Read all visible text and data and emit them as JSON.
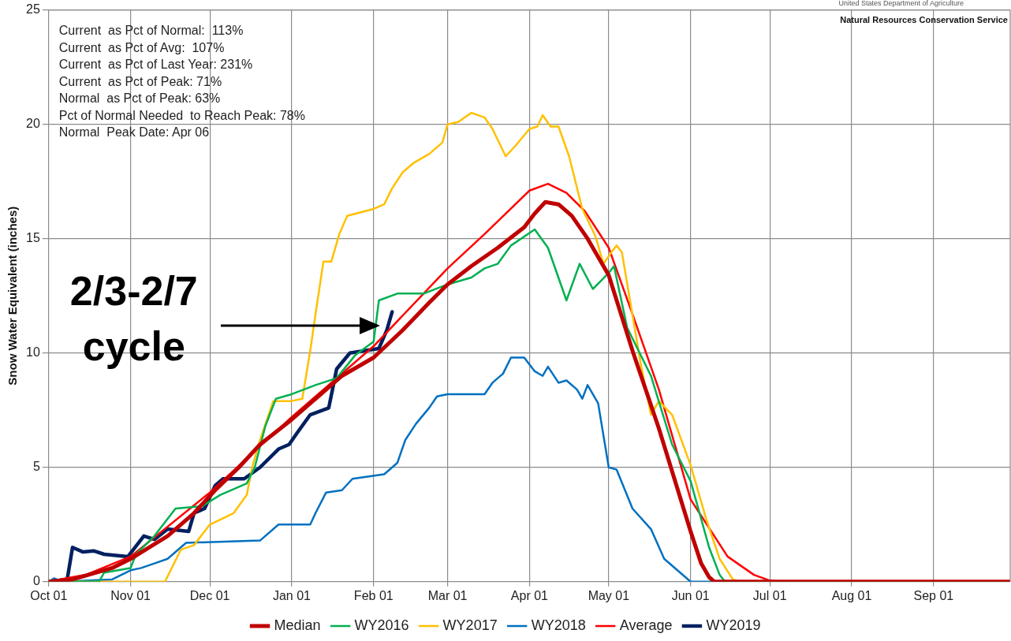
{
  "chart_data": {
    "type": "line",
    "ylabel": "Snow Water Equivalent (inches)",
    "xlim": [
      "2018-10-01",
      "2019-09-30"
    ],
    "xticks": [
      {
        "value": "2018-10-01",
        "label": "Oct 01"
      },
      {
        "value": "2018-11-01",
        "label": "Nov 01"
      },
      {
        "value": "2018-12-01",
        "label": "Dec 01"
      },
      {
        "value": "2019-01-01",
        "label": "Jan 01"
      },
      {
        "value": "2019-02-01",
        "label": "Feb 01"
      },
      {
        "value": "2019-03-01",
        "label": "Mar 01"
      },
      {
        "value": "2019-04-01",
        "label": "Apr 01"
      },
      {
        "value": "2019-05-01",
        "label": "May 01"
      },
      {
        "value": "2019-06-01",
        "label": "Jun 01"
      },
      {
        "value": "2019-07-01",
        "label": "Jul 01"
      },
      {
        "value": "2019-08-01",
        "label": "Aug 01"
      },
      {
        "value": "2019-09-01",
        "label": "Sep 01"
      }
    ],
    "ylim": [
      0,
      25
    ],
    "yticks": [
      0,
      5,
      10,
      15,
      20,
      25
    ],
    "grid": true,
    "legend": "bottom",
    "marker": "none",
    "annotations": [
      "Current  as Pct of Normal:  113%",
      "Current  as Pct of Avg:  107%",
      "Current  as Pct of Last Year: 231%",
      "Current  as Pct of Peak: 71%",
      "Normal  as Pct of Peak: 63%",
      "Pct of Normal Needed  to Reach Peak: 78%",
      "Normal  Peak Date: Apr 06",
      "United States Department of Agriculture",
      "Natural Resources Conservation Service",
      "2/3-2/7 cycle"
    ],
    "series": [
      {
        "name": "Median",
        "color": "#c00000",
        "x": [
          "2018-10-01",
          "2018-10-10",
          "2018-10-25",
          "2018-11-01",
          "2018-11-15",
          "2018-11-25",
          "2018-12-03",
          "2018-12-12",
          "2018-12-20",
          "2018-12-31",
          "2019-01-10",
          "2019-01-20",
          "2019-02-01",
          "2019-02-12",
          "2019-02-22",
          "2019-03-01",
          "2019-03-10",
          "2019-03-20",
          "2019-03-30",
          "2019-04-03",
          "2019-04-07",
          "2019-04-12",
          "2019-04-17",
          "2019-04-23",
          "2019-05-01",
          "2019-05-10",
          "2019-05-20",
          "2019-06-01",
          "2019-06-05",
          "2019-06-08",
          "2019-06-10",
          "2019-09-30"
        ],
        "values": [
          0,
          0.1,
          0.6,
          1.0,
          2.0,
          3.0,
          4.0,
          5.0,
          6.0,
          7.0,
          8.0,
          9.0,
          9.8,
          11.0,
          12.2,
          13.0,
          13.8,
          14.6,
          15.5,
          16.1,
          16.6,
          16.5,
          16.0,
          15.0,
          13.4,
          10.1,
          6.7,
          2.2,
          0.8,
          0.2,
          0,
          0
        ]
      },
      {
        "name": "WY2016",
        "color": "#00b050",
        "x": [
          "2018-10-01",
          "2018-10-20",
          "2018-10-22",
          "2018-11-01",
          "2018-11-03",
          "2018-11-10",
          "2018-11-18",
          "2018-11-28",
          "2018-12-05",
          "2018-12-15",
          "2018-12-18",
          "2018-12-22",
          "2018-12-26",
          "2019-01-01",
          "2019-01-10",
          "2019-01-18",
          "2019-01-25",
          "2019-02-01",
          "2019-02-03",
          "2019-02-10",
          "2019-02-20",
          "2019-03-01",
          "2019-03-10",
          "2019-03-15",
          "2019-03-20",
          "2019-03-25",
          "2019-04-03",
          "2019-04-08",
          "2019-04-15",
          "2019-04-20",
          "2019-04-25",
          "2019-05-01",
          "2019-05-03",
          "2019-05-08",
          "2019-05-17",
          "2019-05-25",
          "2019-06-01",
          "2019-06-08",
          "2019-06-12",
          "2019-06-14",
          "2019-09-30"
        ],
        "values": [
          0,
          0,
          0.4,
          0.6,
          1.2,
          2.0,
          3.2,
          3.3,
          3.8,
          4.3,
          5.0,
          6.8,
          8.0,
          8.2,
          8.6,
          8.9,
          9.9,
          10.5,
          12.3,
          12.6,
          12.6,
          13.0,
          13.3,
          13.7,
          13.9,
          14.7,
          15.4,
          14.6,
          12.3,
          13.9,
          12.8,
          13.5,
          13.8,
          11.1,
          9.0,
          6.0,
          4.4,
          1.5,
          0.3,
          0,
          0
        ]
      },
      {
        "name": "WY2017",
        "color": "#ffc000",
        "x": [
          "2018-10-01",
          "2018-11-14",
          "2018-11-20",
          "2018-11-25",
          "2018-12-01",
          "2018-12-10",
          "2018-12-15",
          "2018-12-17",
          "2018-12-20",
          "2018-12-25",
          "2019-01-01",
          "2019-01-05",
          "2019-01-08",
          "2019-01-10",
          "2019-01-13",
          "2019-01-16",
          "2019-01-19",
          "2019-01-22",
          "2019-02-01",
          "2019-02-05",
          "2019-02-08",
          "2019-02-12",
          "2019-02-16",
          "2019-02-22",
          "2019-02-27",
          "2019-03-01",
          "2019-03-05",
          "2019-03-10",
          "2019-03-15",
          "2019-03-18",
          "2019-03-23",
          "2019-03-27",
          "2019-04-01",
          "2019-04-04",
          "2019-04-06",
          "2019-04-09",
          "2019-04-12",
          "2019-04-16",
          "2019-04-21",
          "2019-04-26",
          "2019-04-29",
          "2019-05-02",
          "2019-05-04",
          "2019-05-06",
          "2019-05-13",
          "2019-05-17",
          "2019-05-20",
          "2019-05-25",
          "2019-06-01",
          "2019-06-07",
          "2019-06-12",
          "2019-06-17",
          "2019-06-20",
          "2019-09-30"
        ],
        "values": [
          0,
          0,
          1.4,
          1.6,
          2.5,
          3.0,
          3.8,
          5.0,
          6.2,
          7.9,
          7.9,
          8.0,
          10.1,
          11.7,
          14.0,
          14.0,
          15.2,
          16.0,
          16.3,
          16.5,
          17.2,
          17.9,
          18.3,
          18.7,
          19.2,
          20.0,
          20.1,
          20.5,
          20.3,
          19.8,
          18.6,
          19.1,
          19.8,
          19.9,
          20.4,
          19.9,
          19.9,
          18.6,
          16.3,
          15.1,
          13.9,
          14.4,
          14.7,
          14.4,
          9.6,
          7.3,
          7.9,
          7.3,
          5.1,
          2.7,
          1.0,
          0.1,
          0,
          0
        ]
      },
      {
        "name": "WY2018",
        "color": "#0070c0",
        "x": [
          "2018-10-01",
          "2018-10-03",
          "2018-10-06",
          "2018-10-25",
          "2018-11-01",
          "2018-11-05",
          "2018-11-10",
          "2018-11-15",
          "2018-11-20",
          "2018-11-22",
          "2018-12-20",
          "2018-12-27",
          "2019-01-08",
          "2019-01-10",
          "2019-01-14",
          "2019-01-20",
          "2019-01-24",
          "2019-02-05",
          "2019-02-10",
          "2019-02-13",
          "2019-02-17",
          "2019-02-22",
          "2019-02-25",
          "2019-03-01",
          "2019-03-15",
          "2019-03-18",
          "2019-03-22",
          "2019-03-25",
          "2019-03-30",
          "2019-04-03",
          "2019-04-06",
          "2019-04-08",
          "2019-04-12",
          "2019-04-15",
          "2019-04-19",
          "2019-04-21",
          "2019-04-23",
          "2019-04-27",
          "2019-05-01",
          "2019-05-04",
          "2019-05-10",
          "2019-05-17",
          "2019-05-22",
          "2019-05-27",
          "2019-06-01",
          "2019-09-30"
        ],
        "values": [
          0,
          0.15,
          0,
          0.1,
          0.5,
          0.6,
          0.8,
          1.0,
          1.5,
          1.7,
          1.8,
          2.5,
          2.5,
          3.0,
          3.9,
          4.0,
          4.5,
          4.7,
          5.2,
          6.2,
          6.9,
          7.6,
          8.1,
          8.2,
          8.2,
          8.7,
          9.1,
          9.8,
          9.8,
          9.2,
          9.0,
          9.4,
          8.7,
          8.8,
          8.4,
          8.0,
          8.6,
          7.8,
          5.0,
          4.9,
          3.2,
          2.3,
          1.0,
          0.5,
          0,
          0
        ]
      },
      {
        "name": "Average",
        "color": "#ff0000",
        "x": [
          "2018-10-01",
          "2018-10-05",
          "2018-10-15",
          "2018-11-01",
          "2018-12-01",
          "2019-01-01",
          "2019-02-01",
          "2019-03-01",
          "2019-03-15",
          "2019-04-01",
          "2019-04-08",
          "2019-04-15",
          "2019-04-22",
          "2019-05-01",
          "2019-05-10",
          "2019-05-20",
          "2019-06-01",
          "2019-06-15",
          "2019-06-25",
          "2019-07-01",
          "2019-07-05",
          "2019-09-30"
        ],
        "values": [
          0,
          0.1,
          0.3,
          1.1,
          3.9,
          7.2,
          10.3,
          13.7,
          15.2,
          17.1,
          17.4,
          17.0,
          16.2,
          14.6,
          11.7,
          8.4,
          3.6,
          1.1,
          0.3,
          0.05,
          0,
          0
        ]
      },
      {
        "name": "WY2019",
        "color": "#002060",
        "x": [
          "2018-10-01",
          "2018-10-08",
          "2018-10-10",
          "2018-10-14",
          "2018-10-18",
          "2018-10-22",
          "2018-10-31",
          "2018-11-06",
          "2018-11-10",
          "2018-11-15",
          "2018-11-23",
          "2018-11-25",
          "2018-11-29",
          "2018-12-03",
          "2018-12-06",
          "2018-12-14",
          "2018-12-20",
          "2018-12-27",
          "2018-12-31",
          "2019-01-03",
          "2019-01-08",
          "2019-01-15",
          "2019-01-18",
          "2019-01-23",
          "2019-02-03",
          "2019-02-06",
          "2019-02-08"
        ],
        "values": [
          0,
          0.1,
          1.5,
          1.3,
          1.35,
          1.2,
          1.1,
          2.0,
          1.85,
          2.3,
          2.2,
          3.0,
          3.2,
          4.2,
          4.5,
          4.5,
          5.0,
          5.8,
          6.0,
          6.5,
          7.3,
          7.6,
          9.3,
          10.0,
          10.2,
          11.0,
          11.8
        ]
      }
    ]
  }
}
